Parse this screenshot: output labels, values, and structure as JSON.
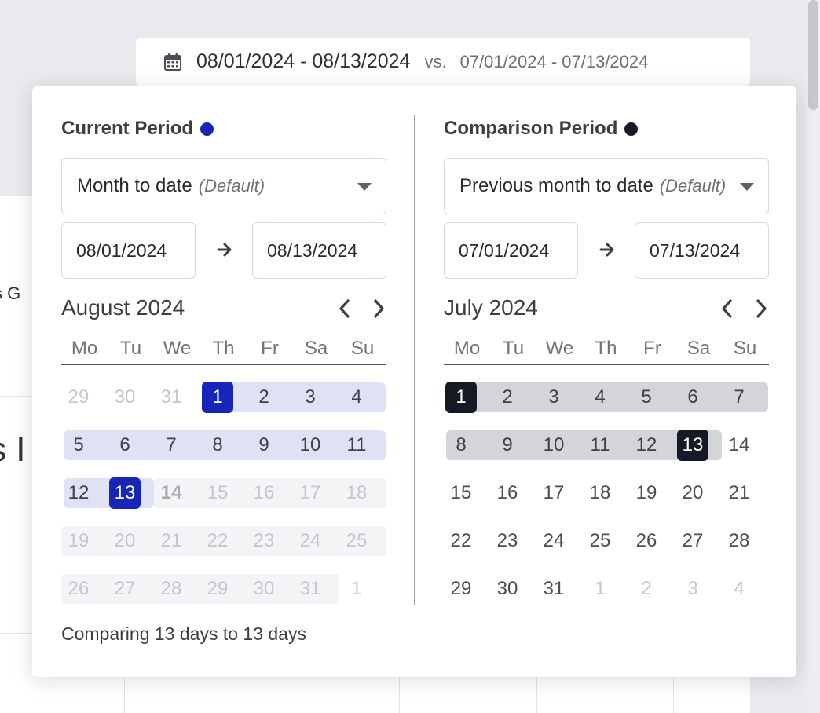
{
  "background": {
    "fragment_top": "s G",
    "fragment_mid": "s I"
  },
  "trigger": {
    "range": "08/01/2024 - 08/13/2024",
    "vs": "vs.",
    "compare": "07/01/2024 - 07/13/2024",
    "icon": "calendar-icon"
  },
  "current": {
    "title": "Current Period",
    "dot_color": "#1726b8",
    "preset_label": "Month to date",
    "preset_default": "(Default)",
    "start": "08/01/2024",
    "end": "08/13/2024",
    "month": "August 2024",
    "selected_color": "#1726b8",
    "range_color": "#dfe1f5",
    "disabled_band_color": "#f3f4f5"
  },
  "compare": {
    "title": "Comparison Period",
    "dot_color": "#151a26",
    "preset_label": "Previous month to date",
    "preset_default": "(Default)",
    "start": "07/01/2024",
    "end": "07/13/2024",
    "month": "July 2024",
    "selected_color": "#151a26",
    "range_color": "#d3d5d9"
  },
  "weekdays": [
    "Mo",
    "Tu",
    "We",
    "Th",
    "Fr",
    "Sa",
    "Su"
  ],
  "calendars": {
    "current": [
      [
        {
          "d": "29",
          "s": "out"
        },
        {
          "d": "30",
          "s": "out"
        },
        {
          "d": "31",
          "s": "out"
        },
        {
          "d": "1",
          "s": "sel"
        },
        {
          "d": "2",
          "s": "range"
        },
        {
          "d": "3",
          "s": "range"
        },
        {
          "d": "4",
          "s": "range"
        }
      ],
      [
        {
          "d": "5",
          "s": "range"
        },
        {
          "d": "6",
          "s": "range"
        },
        {
          "d": "7",
          "s": "range"
        },
        {
          "d": "8",
          "s": "range"
        },
        {
          "d": "9",
          "s": "range"
        },
        {
          "d": "10",
          "s": "range"
        },
        {
          "d": "11",
          "s": "range"
        }
      ],
      [
        {
          "d": "12",
          "s": "range"
        },
        {
          "d": "13",
          "s": "sel"
        },
        {
          "d": "14",
          "s": "today"
        },
        {
          "d": "15",
          "s": "dis"
        },
        {
          "d": "16",
          "s": "dis"
        },
        {
          "d": "17",
          "s": "dis"
        },
        {
          "d": "18",
          "s": "dis"
        }
      ],
      [
        {
          "d": "19",
          "s": "dis"
        },
        {
          "d": "20",
          "s": "dis"
        },
        {
          "d": "21",
          "s": "dis"
        },
        {
          "d": "22",
          "s": "dis"
        },
        {
          "d": "23",
          "s": "dis"
        },
        {
          "d": "24",
          "s": "dis"
        },
        {
          "d": "25",
          "s": "dis"
        }
      ],
      [
        {
          "d": "26",
          "s": "dis"
        },
        {
          "d": "27",
          "s": "dis"
        },
        {
          "d": "28",
          "s": "dis"
        },
        {
          "d": "29",
          "s": "dis"
        },
        {
          "d": "30",
          "s": "dis"
        },
        {
          "d": "31",
          "s": "dis"
        },
        {
          "d": "1",
          "s": "out"
        }
      ]
    ],
    "compare": [
      [
        {
          "d": "1",
          "s": "sel"
        },
        {
          "d": "2",
          "s": "range"
        },
        {
          "d": "3",
          "s": "range"
        },
        {
          "d": "4",
          "s": "range"
        },
        {
          "d": "5",
          "s": "range"
        },
        {
          "d": "6",
          "s": "range"
        },
        {
          "d": "7",
          "s": "range"
        }
      ],
      [
        {
          "d": "8",
          "s": "range"
        },
        {
          "d": "9",
          "s": "range"
        },
        {
          "d": "10",
          "s": "range"
        },
        {
          "d": "11",
          "s": "range"
        },
        {
          "d": "12",
          "s": "range"
        },
        {
          "d": "13",
          "s": "sel"
        },
        {
          "d": "14",
          "s": "norm"
        }
      ],
      [
        {
          "d": "15",
          "s": "norm"
        },
        {
          "d": "16",
          "s": "norm"
        },
        {
          "d": "17",
          "s": "norm"
        },
        {
          "d": "18",
          "s": "norm"
        },
        {
          "d": "19",
          "s": "norm"
        },
        {
          "d": "20",
          "s": "norm"
        },
        {
          "d": "21",
          "s": "norm"
        }
      ],
      [
        {
          "d": "22",
          "s": "norm"
        },
        {
          "d": "23",
          "s": "norm"
        },
        {
          "d": "24",
          "s": "norm"
        },
        {
          "d": "25",
          "s": "norm"
        },
        {
          "d": "26",
          "s": "norm"
        },
        {
          "d": "27",
          "s": "norm"
        },
        {
          "d": "28",
          "s": "norm"
        }
      ],
      [
        {
          "d": "29",
          "s": "norm"
        },
        {
          "d": "30",
          "s": "norm"
        },
        {
          "d": "31",
          "s": "norm"
        },
        {
          "d": "1",
          "s": "out"
        },
        {
          "d": "2",
          "s": "out"
        },
        {
          "d": "3",
          "s": "out"
        },
        {
          "d": "4",
          "s": "out"
        }
      ]
    ]
  },
  "summary": "Comparing 13 days to 13 days"
}
